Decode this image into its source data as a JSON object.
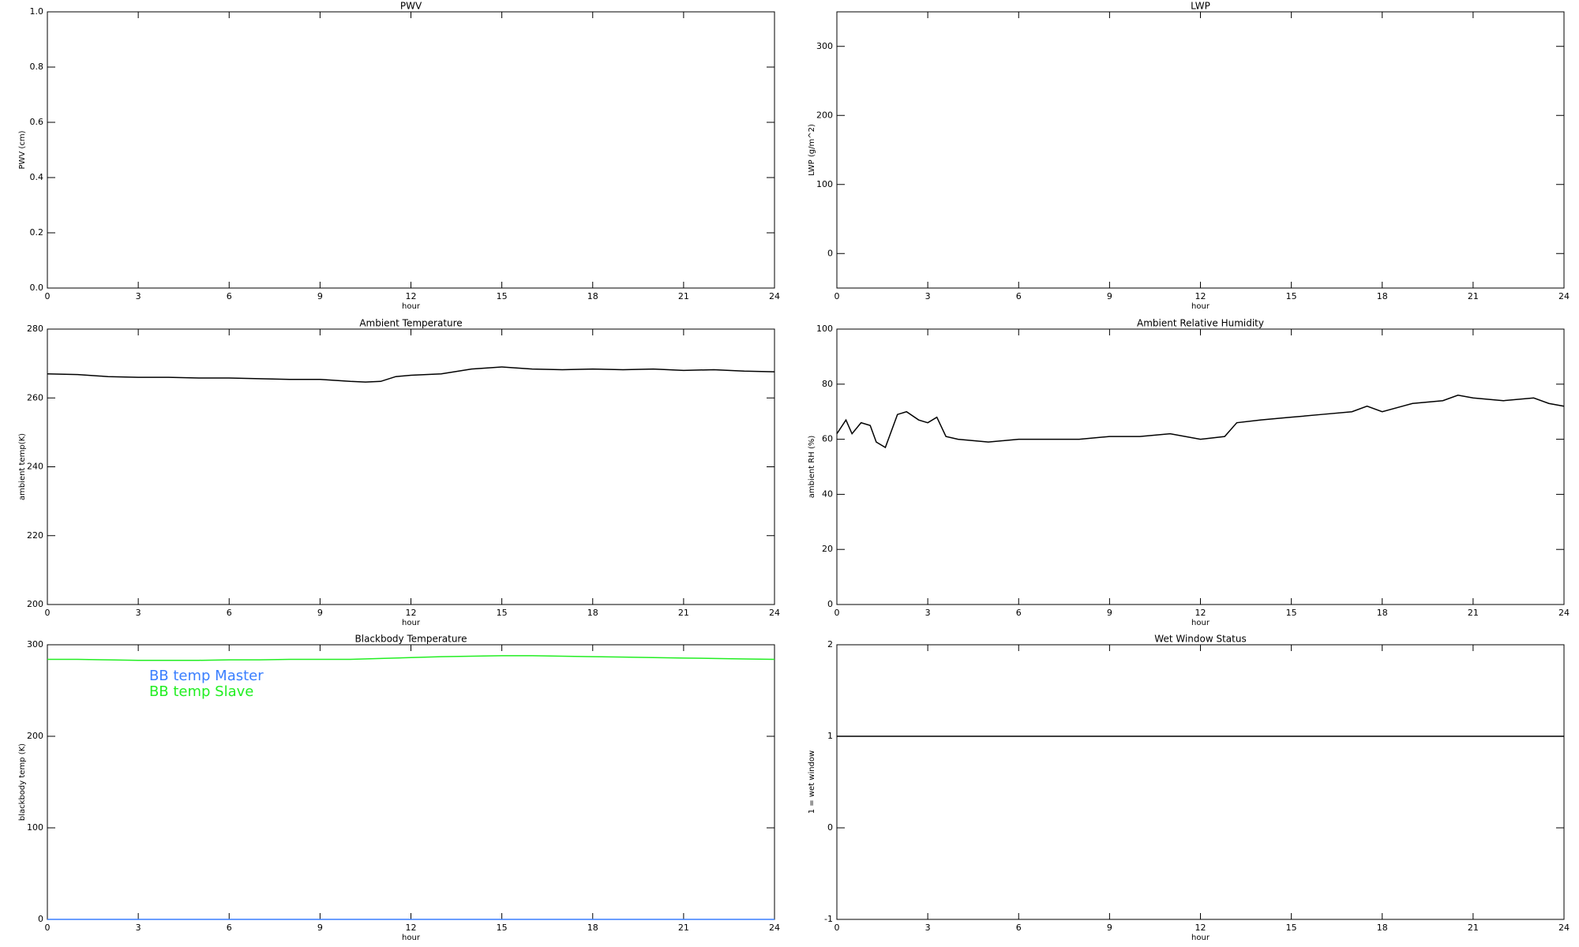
{
  "chart_data": [
    {
      "type": "line",
      "title": "PWV",
      "ylabel": "PWV (cm)",
      "xlabel": "hour",
      "xlim": [
        0,
        24
      ],
      "xticks": [
        0,
        3,
        6,
        9,
        12,
        15,
        18,
        21,
        24
      ],
      "ylim": [
        0,
        1
      ],
      "yticks": [
        {
          "value": 0,
          "label": "0.0"
        },
        0.2,
        0.4,
        0.6,
        0.8,
        {
          "value": 1,
          "label": "1.0"
        }
      ]
    },
    {
      "type": "line",
      "title": "LWP",
      "ylabel": "LWP (g/m^2)",
      "xlabel": "hour",
      "xlim": [
        0,
        24
      ],
      "xticks": [
        0,
        3,
        6,
        9,
        12,
        15,
        18,
        21,
        24
      ],
      "ylim": [
        -50,
        350
      ],
      "yticks": [
        0,
        100,
        200,
        300
      ]
    },
    {
      "type": "line",
      "title": "Ambient Temperature",
      "ylabel": "ambient temp(K)",
      "xlabel": "hour",
      "xlim": [
        0,
        24
      ],
      "xticks": [
        0,
        3,
        6,
        9,
        12,
        15,
        18,
        21,
        24
      ],
      "ylim": [
        200,
        280
      ],
      "yticks": [
        200,
        220,
        240,
        260,
        280
      ],
      "x": [
        0,
        1,
        2,
        3,
        4,
        5,
        6,
        7,
        8,
        9,
        10,
        10.5,
        11,
        11.5,
        12,
        13,
        14,
        15,
        16,
        17,
        18,
        19,
        20,
        21,
        22,
        23,
        24
      ],
      "series": [
        {
          "color": "#000000",
          "values": [
            267,
            266.8,
            266.2,
            266,
            266,
            265.8,
            265.8,
            265.6,
            265.4,
            265.4,
            264.8,
            264.6,
            264.8,
            266.2,
            266.6,
            267,
            268.4,
            269,
            268.4,
            268.2,
            268.4,
            268.2,
            268.4,
            268,
            268.2,
            267.8,
            267.6
          ]
        }
      ]
    },
    {
      "type": "line",
      "title": "Ambient Relative Humidity",
      "ylabel": "ambient RH (%)",
      "xlabel": "hour",
      "xlim": [
        0,
        24
      ],
      "xticks": [
        0,
        3,
        6,
        9,
        12,
        15,
        18,
        21,
        24
      ],
      "ylim": [
        0,
        100
      ],
      "yticks": [
        0,
        20,
        40,
        60,
        80,
        100
      ],
      "x": [
        0,
        0.3,
        0.5,
        0.8,
        1.1,
        1.3,
        1.6,
        2,
        2.3,
        2.7,
        3,
        3.3,
        3.6,
        4,
        5,
        6,
        7,
        8,
        9,
        10,
        11,
        12,
        12.8,
        13.2,
        14,
        15,
        16,
        17,
        17.5,
        18,
        19,
        20,
        20.5,
        21,
        22,
        23,
        23.5,
        24
      ],
      "series": [
        {
          "color": "#000000",
          "values": [
            62,
            67,
            62,
            66,
            65,
            59,
            57,
            69,
            70,
            67,
            66,
            68,
            61,
            60,
            59,
            60,
            60,
            60,
            61,
            61,
            62,
            60,
            61,
            66,
            67,
            68,
            69,
            70,
            72,
            70,
            73,
            74,
            76,
            75,
            74,
            75,
            73,
            72
          ]
        }
      ]
    },
    {
      "type": "line",
      "title": "Blackbody Temperature",
      "ylabel": "blackbody temp (K)",
      "xlabel": "hour",
      "xlim": [
        0,
        24
      ],
      "xticks": [
        0,
        3,
        6,
        9,
        12,
        15,
        18,
        21,
        24
      ],
      "ylim": [
        0,
        300
      ],
      "yticks": [
        0,
        100,
        200,
        300
      ],
      "legend": "upper left",
      "x": [
        0,
        1,
        2,
        3,
        4,
        5,
        6,
        7,
        8,
        9,
        10,
        11,
        12,
        13,
        14,
        15,
        16,
        17,
        18,
        19,
        20,
        21,
        22,
        23,
        24
      ],
      "series": [
        {
          "name": "BB temp Master",
          "color": "#3a7fff",
          "values": [
            0,
            0,
            0,
            0,
            0,
            0,
            0,
            0,
            0,
            0,
            0,
            0,
            0,
            0,
            0,
            0,
            0,
            0,
            0,
            0,
            0,
            0,
            0,
            0,
            0
          ]
        },
        {
          "name": "BB temp Slave",
          "color": "#22ee22",
          "values": [
            284,
            284,
            283.5,
            283,
            283,
            283,
            283.5,
            283.5,
            284,
            284,
            284,
            285,
            286,
            287,
            287.5,
            288,
            288,
            287.5,
            287,
            286.5,
            286,
            285.5,
            285,
            284.5,
            284
          ]
        }
      ]
    },
    {
      "type": "line",
      "title": "Wet Window Status",
      "ylabel": "1 = wet window",
      "xlabel": "hour",
      "xlim": [
        0,
        24
      ],
      "xticks": [
        0,
        3,
        6,
        9,
        12,
        15,
        18,
        21,
        24
      ],
      "ylim": [
        -1,
        2
      ],
      "yticks": [
        -1,
        0,
        1,
        2
      ],
      "x": [
        0,
        24
      ],
      "series": [
        {
          "color": "#000000",
          "values": [
            1,
            1
          ]
        }
      ]
    }
  ]
}
